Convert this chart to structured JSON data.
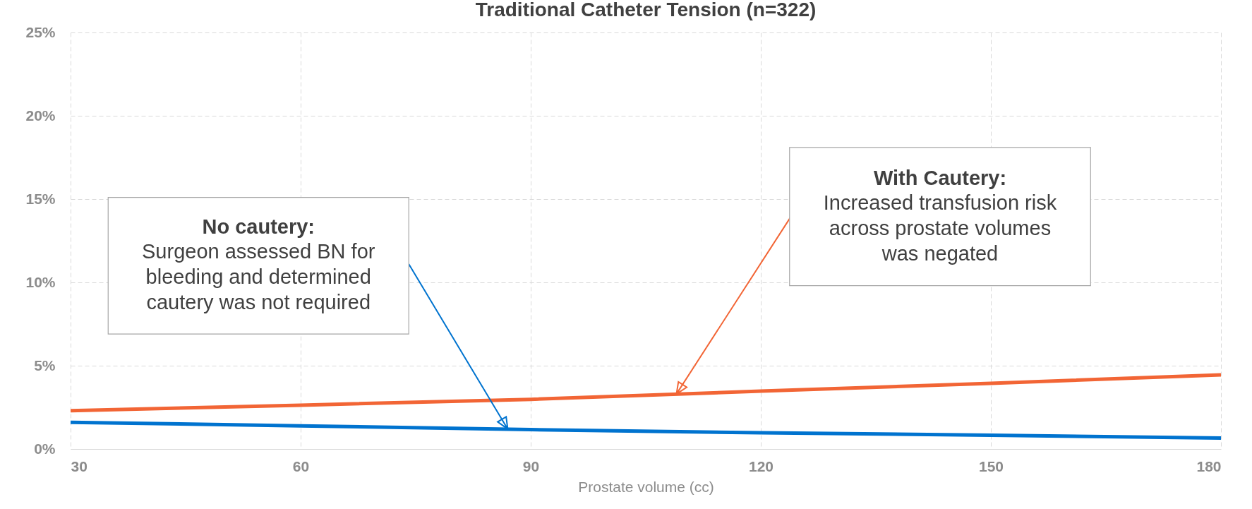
{
  "chart_data": {
    "type": "line",
    "title": "Traditional Catheter Tension (n=322)",
    "xlabel": "Prostate volume (cc)",
    "x": [
      30,
      60,
      90,
      120,
      150,
      180
    ],
    "xlim": [
      30,
      180
    ],
    "xticks": [
      30,
      60,
      90,
      120,
      150,
      180
    ],
    "ylim": [
      0,
      25
    ],
    "yticks": [
      {
        "value": 0,
        "label": "0%"
      },
      {
        "value": 5,
        "label": "5%"
      },
      {
        "value": 10,
        "label": "10%"
      },
      {
        "value": 15,
        "label": "15%"
      },
      {
        "value": 20,
        "label": "20%"
      },
      {
        "value": 25,
        "label": "25%"
      }
    ],
    "series": [
      {
        "color": "#f26535",
        "values": [
          2.3,
          2.63,
          2.98,
          3.47,
          3.94,
          4.45
        ]
      },
      {
        "color": "#0073cf",
        "values": [
          1.6,
          1.39,
          1.16,
          0.97,
          0.83,
          0.66
        ]
      }
    ],
    "annotations": [
      "No cautery:",
      "Surgeon assessed BN for bleeding and determined cautery was not required",
      "With Cautery:",
      "Increased transfusion risk across prostate volumes was negated"
    ],
    "grid": true,
    "legend": false,
    "line_style": "solid",
    "marker": "none"
  }
}
